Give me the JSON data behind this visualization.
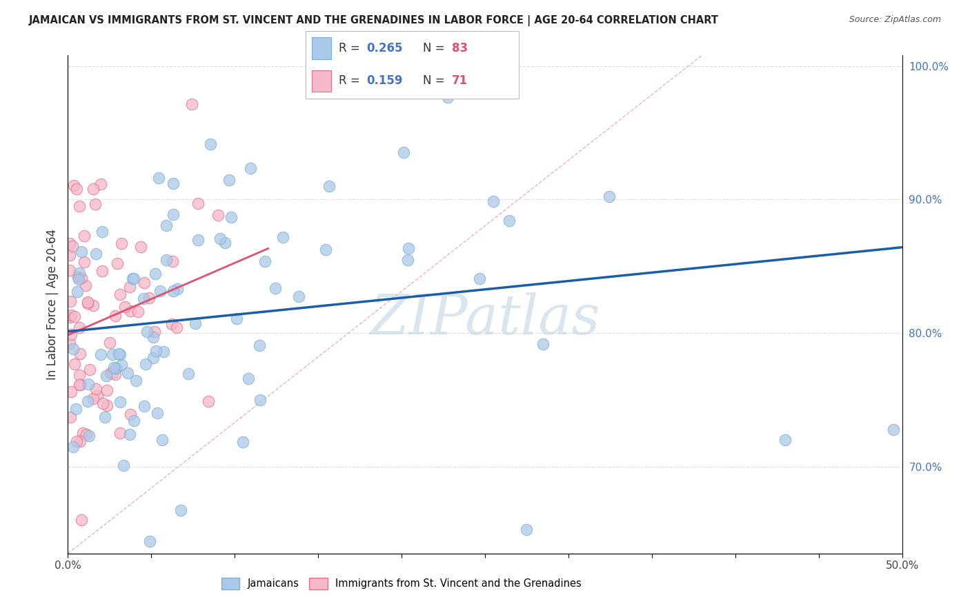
{
  "title": "JAMAICAN VS IMMIGRANTS FROM ST. VINCENT AND THE GRENADINES IN LABOR FORCE | AGE 20-64 CORRELATION CHART",
  "source": "Source: ZipAtlas.com",
  "ylabel": "In Labor Force | Age 20-64",
  "xlim": [
    0.0,
    0.5
  ],
  "ylim": [
    0.635,
    1.008
  ],
  "xtick_labels_left": "0.0%",
  "xtick_labels_right": "50.0%",
  "yticks": [
    0.7,
    0.8,
    0.9,
    1.0
  ],
  "ytick_labels": [
    "70.0%",
    "80.0%",
    "90.0%",
    "100.0%"
  ],
  "legend_label1": "Jamaicans",
  "legend_label2": "Immigrants from St. Vincent and the Grenadines",
  "color_blue": "#aac9e8",
  "color_blue_edge": "#7aafd4",
  "color_blue_line": "#1a5ea8",
  "color_pink": "#f5b8c8",
  "color_pink_edge": "#e07090",
  "color_pink_line": "#e05070",
  "color_diag": "#e8a0b8",
  "r1": 0.265,
  "n1": 83,
  "r2": 0.159,
  "n2": 71,
  "blue_trend_x0": 0.0,
  "blue_trend_y0": 0.793,
  "blue_trend_x1": 0.5,
  "blue_trend_y1": 0.873,
  "watermark": "ZIPatlas",
  "watermark_color": "#b8ccdf",
  "watermark_alpha": 0.5
}
